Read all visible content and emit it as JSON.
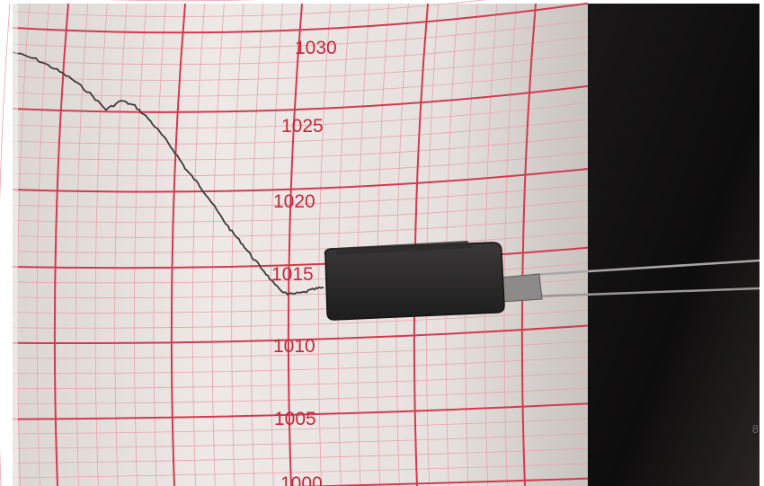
{
  "scene": {
    "subject": "barograph-drum",
    "colors": {
      "paper": "#ece7e4",
      "grid_major": "#d23a4e",
      "grid_minor": "#e8a3ad",
      "trace": "#3e3a3a",
      "pen_arm": "#2b2a2a",
      "background": "#161414"
    }
  },
  "scale_labels": [
    "1030",
    "1025",
    "1020",
    "1015",
    "1010",
    "1005",
    "1000"
  ],
  "corner_mark": "8"
}
